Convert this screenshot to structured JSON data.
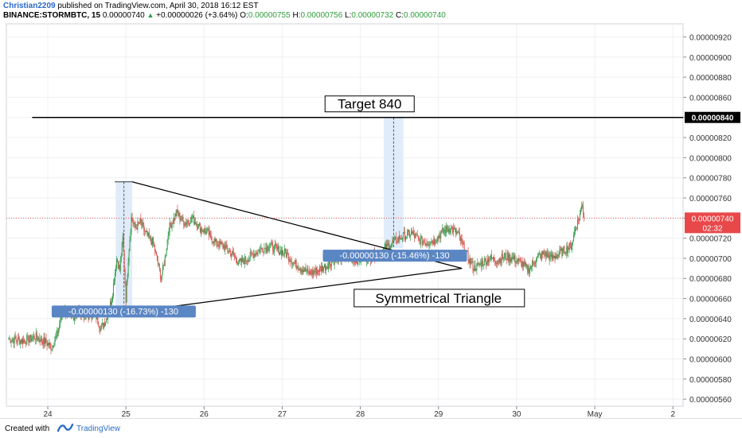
{
  "header": {
    "author": "Christian2209",
    "published": "published on TradingView.com, April 30, 2018 16:12 EST",
    "symbol": "BINANCE:STORMBTC, 15",
    "price": "0.00000740",
    "change_arrow": "▲",
    "change": "+0.00000026 (+3.64%)",
    "o_label": "O:",
    "o": "0.00000755",
    "h_label": "H:",
    "h": "0.00000756",
    "l_label": "L:",
    "l": "0.00000732",
    "c_label": "C:",
    "c": "0.00000740"
  },
  "footer": {
    "created": "Created with",
    "brand": "TradingView",
    "logo_icon": "tradingview-logo-icon"
  },
  "chart_data": {
    "type": "candlestick",
    "timeframe": "15",
    "y_ticks": [
      "0.00000560",
      "0.00000580",
      "0.00000600",
      "0.00000620",
      "0.00000640",
      "0.00000660",
      "0.00000680",
      "0.00000700",
      "0.00000720",
      "0.00000740",
      "0.00000760",
      "0.00000780",
      "0.00000800",
      "0.00000820",
      "0.00000840",
      "0.00000860",
      "0.00000880",
      "0.00000900",
      "0.00000920"
    ],
    "x_ticks": [
      "24",
      "25",
      "26",
      "27",
      "28",
      "29",
      "30",
      "May",
      "2"
    ],
    "ylim": [
      5.53e-06,
      9.33e-06
    ],
    "xlim": [
      23.47,
      32.13
    ],
    "grid": true,
    "colors": {
      "up": "#3a9e52",
      "down": "#d9534f",
      "line": "#000000",
      "measure_fill": "#dbe9f8",
      "measure_label": "#5b86c4",
      "price_tag": "#e9484a"
    },
    "series": [
      {
        "points": [
          [
            23.5,
            6.2e-06
          ],
          [
            23.7,
            6.18e-06
          ],
          [
            23.85,
            6.22e-06
          ],
          [
            23.95,
            6.18e-06
          ],
          [
            24.05,
            6.12e-06
          ],
          [
            24.12,
            6.24e-06
          ],
          [
            24.2,
            6.5e-06
          ],
          [
            24.3,
            6.4e-06
          ],
          [
            24.4,
            6.48e-06
          ],
          [
            24.5,
            6.42e-06
          ],
          [
            24.6,
            6.46e-06
          ],
          [
            24.68,
            6.3e-06
          ],
          [
            24.75,
            6.4e-06
          ],
          [
            24.82,
            6.6e-06
          ],
          [
            24.88,
            7e-06
          ],
          [
            24.92,
            6.88e-06
          ],
          [
            24.96,
            7.2e-06
          ],
          [
            25.0,
            6.6e-06
          ],
          [
            25.03,
            7e-06
          ],
          [
            25.07,
            7.4e-06
          ],
          [
            25.12,
            7.3e-06
          ],
          [
            25.18,
            7.36e-06
          ],
          [
            25.25,
            7.25e-06
          ],
          [
            25.35,
            7.15e-06
          ],
          [
            25.45,
            6.8e-06
          ],
          [
            25.5,
            7e-06
          ],
          [
            25.55,
            7.3e-06
          ],
          [
            25.65,
            7.45e-06
          ],
          [
            25.75,
            7.35e-06
          ],
          [
            25.85,
            7.4e-06
          ],
          [
            25.95,
            7.3e-06
          ],
          [
            26.05,
            7.25e-06
          ],
          [
            26.15,
            7.15e-06
          ],
          [
            26.25,
            7.12e-06
          ],
          [
            26.35,
            7.05e-06
          ],
          [
            26.45,
            6.95e-06
          ],
          [
            26.55,
            7e-06
          ],
          [
            26.65,
            7.05e-06
          ],
          [
            26.75,
            7.1e-06
          ],
          [
            26.85,
            7.12e-06
          ],
          [
            26.95,
            7.08e-06
          ],
          [
            27.05,
            7.05e-06
          ],
          [
            27.15,
            6.95e-06
          ],
          [
            27.25,
            6.9e-06
          ],
          [
            27.35,
            6.85e-06
          ],
          [
            27.45,
            6.88e-06
          ],
          [
            27.55,
            6.92e-06
          ],
          [
            27.65,
            6.98e-06
          ],
          [
            27.75,
            7e-06
          ],
          [
            27.85,
            7.02e-06
          ],
          [
            27.95,
            6.98e-06
          ],
          [
            28.05,
            7e-06
          ],
          [
            28.15,
            7.02e-06
          ],
          [
            28.25,
            7.05e-06
          ],
          [
            28.35,
            7.12e-06
          ],
          [
            28.45,
            7.18e-06
          ],
          [
            28.55,
            7.22e-06
          ],
          [
            28.65,
            7.25e-06
          ],
          [
            28.75,
            7.18e-06
          ],
          [
            28.85,
            7.16e-06
          ],
          [
            28.95,
            7.18e-06
          ],
          [
            29.05,
            7.26e-06
          ],
          [
            29.15,
            7.3e-06
          ],
          [
            29.25,
            7.24e-06
          ],
          [
            29.35,
            7.05e-06
          ],
          [
            29.45,
            6.9e-06
          ],
          [
            29.55,
            6.95e-06
          ],
          [
            29.65,
            7e-06
          ],
          [
            29.75,
            6.98e-06
          ],
          [
            29.85,
            7.02e-06
          ],
          [
            29.95,
            7e-06
          ],
          [
            30.05,
            6.96e-06
          ],
          [
            30.15,
            6.88e-06
          ],
          [
            30.25,
            7e-06
          ],
          [
            30.35,
            7.05e-06
          ],
          [
            30.45,
            7e-06
          ],
          [
            30.55,
            7.05e-06
          ],
          [
            30.65,
            7.1e-06
          ],
          [
            30.7,
            7.12e-06
          ],
          [
            30.75,
            7.3e-06
          ],
          [
            30.8,
            7.4e-06
          ],
          [
            30.84,
            7.55e-06
          ],
          [
            30.86,
            7.4e-06
          ]
        ]
      }
    ],
    "current_price": "0.00000740",
    "countdown": "02:32",
    "target": {
      "price": 8.4e-06,
      "price_label": "0.00000840",
      "text": "Target 840"
    },
    "pattern_label": "Symmetrical Triangle",
    "triangle": [
      [
        25.08,
        7.76e-06
      ],
      [
        25.0,
        6.46e-06
      ],
      [
        29.3,
        6.9e-06
      ]
    ],
    "measures": [
      {
        "x0": 24.87,
        "x1": 25.08,
        "y_top": 7.76e-06,
        "y_bottom": 6.46e-06,
        "label": "-0.00000130 (-16.73%) -130",
        "label_x": 24.05,
        "label_y": 6.475e-06
      },
      {
        "x0": 28.3,
        "x1": 28.55,
        "y_top": 8.4e-06,
        "y_bottom": 7.1e-06,
        "label": "-0.00000130 (-15.46%) -130",
        "label_x": 27.52,
        "label_y": 7.03e-06
      }
    ]
  }
}
